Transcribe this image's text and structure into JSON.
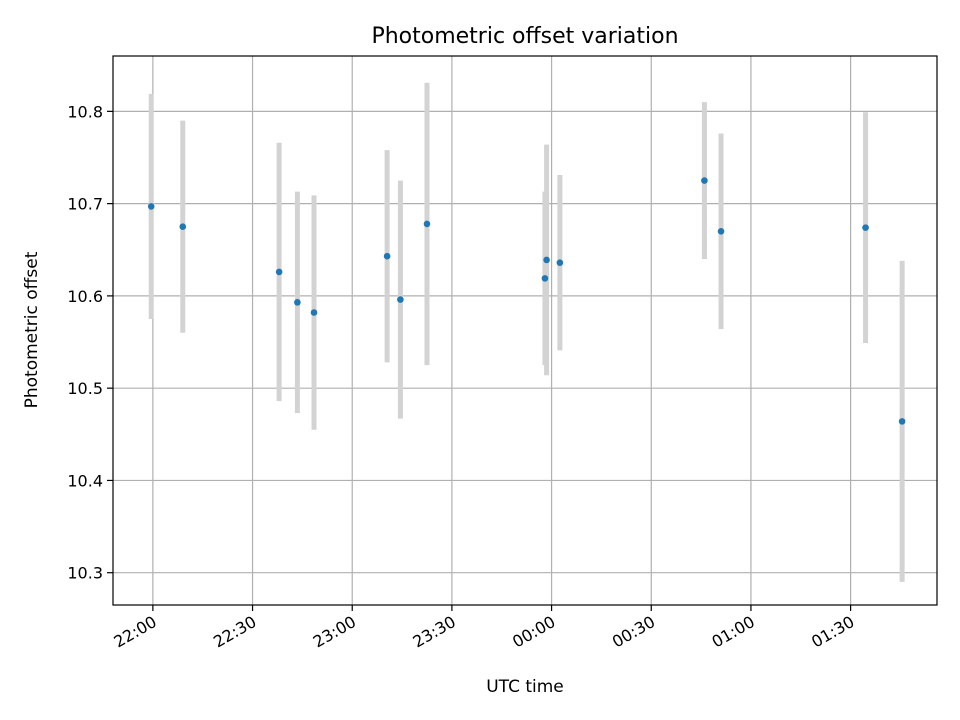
{
  "chart_data": {
    "type": "scatter",
    "title": "Photometric offset variation",
    "xlabel": "UTC time",
    "ylabel": "Photometric offset",
    "x_ticks": [
      "22:00",
      "22:30",
      "23:00",
      "23:30",
      "00:00",
      "00:30",
      "01:00",
      "01:30"
    ],
    "y_ticks": [
      "10.3",
      "10.4",
      "10.5",
      "10.6",
      "10.7",
      "10.8"
    ],
    "xlim": [
      "21:48",
      "01:56"
    ],
    "ylim": [
      10.265,
      10.86
    ],
    "grid": true,
    "marker_color": "#1f77b4",
    "errorbar_color": "#d3d3d3",
    "points": [
      {
        "time": "21:59.5",
        "y": 10.697,
        "err": 0.122
      },
      {
        "time": "22:09",
        "y": 10.675,
        "err": 0.115
      },
      {
        "time": "22:38",
        "y": 10.626,
        "err": 0.14
      },
      {
        "time": "22:43.5",
        "y": 10.593,
        "err": 0.12
      },
      {
        "time": "22:48.5",
        "y": 10.582,
        "err": 0.127
      },
      {
        "time": "23:10.5",
        "y": 10.643,
        "err": 0.115
      },
      {
        "time": "23:14.5",
        "y": 10.596,
        "err": 0.129
      },
      {
        "time": "23:22.5",
        "y": 10.678,
        "err": 0.153
      },
      {
        "time": "23:58",
        "y": 10.619,
        "err": 0.094
      },
      {
        "time": "23:58.5",
        "y": 10.639,
        "err": 0.125
      },
      {
        "time": "00:02.5",
        "y": 10.636,
        "err": 0.095
      },
      {
        "time": "00:46",
        "y": 10.725,
        "err": 0.085
      },
      {
        "time": "00:51",
        "y": 10.67,
        "err": 0.106
      },
      {
        "time": "01:34.5",
        "y": 10.674,
        "err": 0.125
      },
      {
        "time": "01:45.5",
        "y": 10.464,
        "err": 0.174
      }
    ]
  }
}
